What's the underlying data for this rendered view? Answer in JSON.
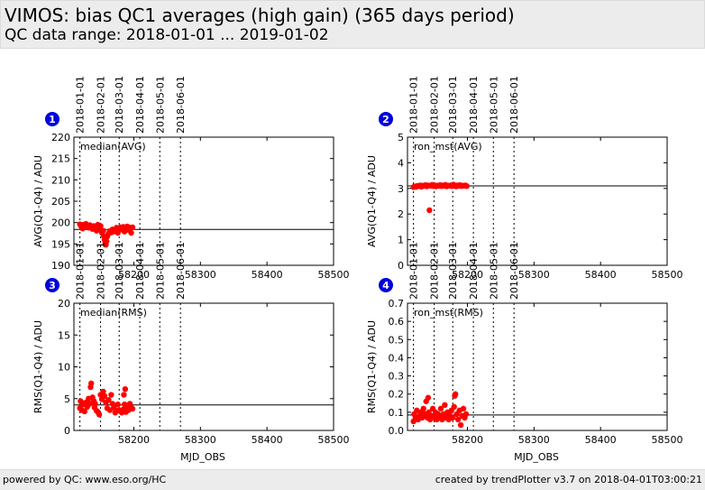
{
  "header": {
    "title": "VIMOS: bias QC1 averages (high gain) (365 days period)",
    "subtitle": "QC data range: 2018-01-01 ... 2019-01-02"
  },
  "footer": {
    "left": "powered by QC: www.eso.org/HC",
    "right": "created by trendPlotter v3.7 on 2018-04-01T03:00:21"
  },
  "colors": {
    "points": "#ff0000",
    "marker_badge": "#0000dd",
    "reference_line": "#000000"
  },
  "chart_data": [
    {
      "type": "scatter",
      "panel": "1",
      "label": "median(AVG)",
      "xlabel": "",
      "ylabel": "AVG(Q1-Q4) / ADU",
      "xlim": [
        58110,
        58500
      ],
      "ylim": [
        190,
        220
      ],
      "yticks": [
        190,
        195,
        200,
        205,
        210,
        215,
        220
      ],
      "xticks": [
        58200,
        58300,
        58400,
        58500
      ],
      "date_markers": [
        {
          "label": "2018-01-01",
          "x": 58119
        },
        {
          "label": "2018-02-01",
          "x": 58150
        },
        {
          "label": "2018-03-01",
          "x": 58178
        },
        {
          "label": "2018-04-01",
          "x": 58209
        },
        {
          "label": "2018-05-01",
          "x": 58239
        },
        {
          "label": "2018-06-01",
          "x": 58270
        }
      ],
      "reference_y": 198.4,
      "points": [
        [
          58119,
          199.6
        ],
        [
          58121,
          199.1
        ],
        [
          58123,
          198.6
        ],
        [
          58124,
          199.5
        ],
        [
          58126,
          199.0
        ],
        [
          58128,
          199.7
        ],
        [
          58130,
          199.3
        ],
        [
          58132,
          198.8
        ],
        [
          58134,
          199.4
        ],
        [
          58136,
          199.1
        ],
        [
          58138,
          198.5
        ],
        [
          58140,
          199.2
        ],
        [
          58142,
          198.6
        ],
        [
          58144,
          198.1
        ],
        [
          58146,
          199.5
        ],
        [
          58148,
          198.4
        ],
        [
          58150,
          199.2
        ],
        [
          58152,
          197.6
        ],
        [
          58154,
          198.1
        ],
        [
          58155,
          196.8
        ],
        [
          58156,
          196.0
        ],
        [
          58157,
          195.2
        ],
        [
          58158,
          194.8
        ],
        [
          58159,
          195.6
        ],
        [
          58160,
          196.7
        ],
        [
          58162,
          197.4
        ],
        [
          58164,
          198.0
        ],
        [
          58166,
          197.7
        ],
        [
          58168,
          198.4
        ],
        [
          58170,
          197.9
        ],
        [
          58172,
          198.3
        ],
        [
          58174,
          198.8
        ],
        [
          58176,
          197.6
        ],
        [
          58178,
          198.2
        ],
        [
          58180,
          198.9
        ],
        [
          58182,
          198.5
        ],
        [
          58184,
          199.0
        ],
        [
          58186,
          197.9
        ],
        [
          58188,
          198.6
        ],
        [
          58190,
          199.1
        ],
        [
          58192,
          198.3
        ],
        [
          58194,
          198.8
        ],
        [
          58196,
          197.6
        ],
        [
          58198,
          198.9
        ]
      ]
    },
    {
      "type": "scatter",
      "panel": "2",
      "label": "ron_mst(AVG)",
      "xlabel": "",
      "ylabel": "AVG(Q1-Q4) / ADU",
      "xlim": [
        58110,
        58500
      ],
      "ylim": [
        0,
        5
      ],
      "yticks": [
        0,
        1,
        2,
        3,
        4,
        5
      ],
      "xticks": [
        58200,
        58300,
        58400,
        58500
      ],
      "date_markers": [
        {
          "label": "2018-01-01",
          "x": 58119
        },
        {
          "label": "2018-02-01",
          "x": 58150
        },
        {
          "label": "2018-03-01",
          "x": 58178
        },
        {
          "label": "2018-04-01",
          "x": 58209
        },
        {
          "label": "2018-05-01",
          "x": 58239
        },
        {
          "label": "2018-06-01",
          "x": 58270
        }
      ],
      "reference_y": 3.1,
      "points": [
        [
          58119,
          3.05
        ],
        [
          58121,
          3.08
        ],
        [
          58123,
          3.06
        ],
        [
          58125,
          3.1
        ],
        [
          58127,
          3.09
        ],
        [
          58129,
          3.12
        ],
        [
          58131,
          3.07
        ],
        [
          58133,
          3.11
        ],
        [
          58135,
          3.1
        ],
        [
          58137,
          3.13
        ],
        [
          58139,
          3.08
        ],
        [
          58141,
          3.12
        ],
        [
          58143,
          2.15
        ],
        [
          58145,
          3.1
        ],
        [
          58147,
          3.14
        ],
        [
          58149,
          3.09
        ],
        [
          58151,
          3.12
        ],
        [
          58153,
          3.08
        ],
        [
          58155,
          3.11
        ],
        [
          58157,
          3.1
        ],
        [
          58159,
          3.13
        ],
        [
          58161,
          3.09
        ],
        [
          58163,
          3.12
        ],
        [
          58165,
          3.1
        ],
        [
          58167,
          3.14
        ],
        [
          58169,
          3.08
        ],
        [
          58171,
          3.11
        ],
        [
          58173,
          3.1
        ],
        [
          58175,
          3.12
        ],
        [
          58177,
          3.09
        ],
        [
          58179,
          3.15
        ],
        [
          58181,
          3.11
        ],
        [
          58183,
          3.08
        ],
        [
          58185,
          3.12
        ],
        [
          58187,
          3.1
        ],
        [
          58189,
          3.13
        ],
        [
          58191,
          3.09
        ],
        [
          58193,
          3.11
        ],
        [
          58195,
          3.1
        ],
        [
          58197,
          3.12
        ],
        [
          58199,
          3.09
        ]
      ]
    },
    {
      "type": "scatter",
      "panel": "3",
      "label": "median(RMS)",
      "xlabel": "MJD_OBS",
      "ylabel": "RMS(Q1-Q4) / ADU",
      "xlim": [
        58110,
        58500
      ],
      "ylim": [
        0,
        20
      ],
      "yticks": [
        0,
        5,
        10,
        15,
        20
      ],
      "xticks": [
        58200,
        58300,
        58400,
        58500
      ],
      "date_markers": [
        {
          "label": "2018-01-01",
          "x": 58119
        },
        {
          "label": "2018-02-01",
          "x": 58150
        },
        {
          "label": "2018-03-01",
          "x": 58178
        },
        {
          "label": "2018-04-01",
          "x": 58209
        },
        {
          "label": "2018-05-01",
          "x": 58239
        },
        {
          "label": "2018-06-01",
          "x": 58270
        }
      ],
      "reference_y": 4.0,
      "points": [
        [
          58119,
          3.5
        ],
        [
          58120,
          4.6
        ],
        [
          58122,
          3.2
        ],
        [
          58124,
          4.1
        ],
        [
          58126,
          3.0
        ],
        [
          58128,
          4.4
        ],
        [
          58130,
          3.7
        ],
        [
          58132,
          5.0
        ],
        [
          58134,
          4.2
        ],
        [
          58135,
          6.8
        ],
        [
          58136,
          7.4
        ],
        [
          58138,
          5.2
        ],
        [
          58140,
          4.6
        ],
        [
          58141,
          3.6
        ],
        [
          58142,
          4.2
        ],
        [
          58144,
          3.1
        ],
        [
          58146,
          2.9
        ],
        [
          58148,
          2.5
        ],
        [
          58150,
          5.6
        ],
        [
          58152,
          4.9
        ],
        [
          58154,
          6.1
        ],
        [
          58156,
          5.4
        ],
        [
          58158,
          4.4
        ],
        [
          58160,
          3.5
        ],
        [
          58162,
          4.8
        ],
        [
          58164,
          3.2
        ],
        [
          58166,
          5.6
        ],
        [
          58168,
          4.2
        ],
        [
          58170,
          3.6
        ],
        [
          58172,
          2.8
        ],
        [
          58174,
          3.1
        ],
        [
          58176,
          4.1
        ],
        [
          58178,
          3.2
        ],
        [
          58180,
          3.0
        ],
        [
          58182,
          2.8
        ],
        [
          58184,
          3.3
        ],
        [
          58185,
          5.6
        ],
        [
          58186,
          4.1
        ],
        [
          58187,
          6.5
        ],
        [
          58188,
          2.9
        ],
        [
          58190,
          3.6
        ],
        [
          58192,
          3.2
        ],
        [
          58194,
          4.2
        ],
        [
          58196,
          3.6
        ],
        [
          58198,
          3.4
        ]
      ]
    },
    {
      "type": "scatter",
      "panel": "4",
      "label": "ron_mst(RMS)",
      "xlabel": "MJD_OBS",
      "ylabel": "RMS(Q1-Q4) / ADU",
      "xlim": [
        58110,
        58500
      ],
      "ylim": [
        0,
        0.7
      ],
      "yticks": [
        0.0,
        0.1,
        0.2,
        0.3,
        0.4,
        0.5,
        0.6,
        0.7
      ],
      "xticks": [
        58200,
        58300,
        58400,
        58500
      ],
      "date_markers": [
        {
          "label": "2018-01-01",
          "x": 58119
        },
        {
          "label": "2018-02-01",
          "x": 58150
        },
        {
          "label": "2018-03-01",
          "x": 58178
        },
        {
          "label": "2018-04-01",
          "x": 58209
        },
        {
          "label": "2018-05-01",
          "x": 58239
        },
        {
          "label": "2018-06-01",
          "x": 58270
        }
      ],
      "reference_y": 0.085,
      "points": [
        [
          58119,
          0.05
        ],
        [
          58120,
          0.09
        ],
        [
          58122,
          0.07
        ],
        [
          58124,
          0.11
        ],
        [
          58126,
          0.06
        ],
        [
          58128,
          0.08
        ],
        [
          58130,
          0.1
        ],
        [
          58132,
          0.07
        ],
        [
          58134,
          0.12
        ],
        [
          58136,
          0.09
        ],
        [
          58138,
          0.16
        ],
        [
          58140,
          0.07
        ],
        [
          58141,
          0.18
        ],
        [
          58142,
          0.1
        ],
        [
          58144,
          0.06
        ],
        [
          58146,
          0.08
        ],
        [
          58148,
          0.12
        ],
        [
          58150,
          0.07
        ],
        [
          58152,
          0.1
        ],
        [
          58154,
          0.06
        ],
        [
          58156,
          0.09
        ],
        [
          58158,
          0.07
        ],
        [
          58160,
          0.12
        ],
        [
          58162,
          0.06
        ],
        [
          58164,
          0.09
        ],
        [
          58166,
          0.14
        ],
        [
          58168,
          0.07
        ],
        [
          58170,
          0.1
        ],
        [
          58172,
          0.06
        ],
        [
          58174,
          0.08
        ],
        [
          58176,
          0.11
        ],
        [
          58178,
          0.07
        ],
        [
          58180,
          0.13
        ],
        [
          58181,
          0.19
        ],
        [
          58182,
          0.2
        ],
        [
          58184,
          0.09
        ],
        [
          58186,
          0.06
        ],
        [
          58188,
          0.11
        ],
        [
          58190,
          0.03
        ],
        [
          58192,
          0.08
        ],
        [
          58194,
          0.12
        ],
        [
          58196,
          0.07
        ],
        [
          58198,
          0.09
        ]
      ]
    }
  ]
}
